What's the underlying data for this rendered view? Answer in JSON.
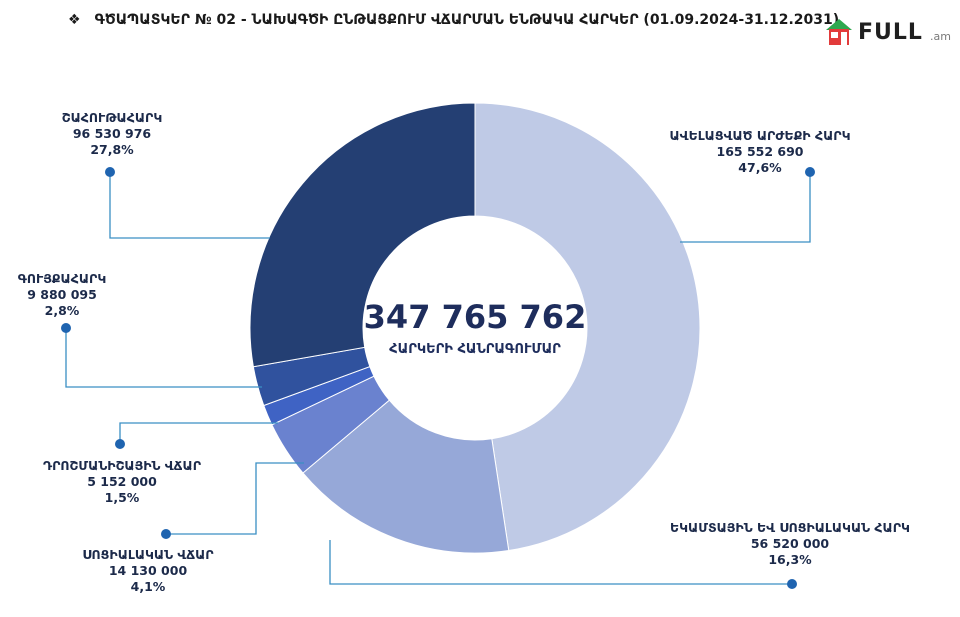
{
  "header": {
    "bullet": "❖",
    "title": "ԳԾԱՊԱՏԿԵՐ № 02 - ՆԱԽԱԳԾԻ ԸՆԹԱՑՔՈՒՄ ՎՃԱՐՄԱՆ ԵՆԹԱԿԱ ՀԱՐԿԵՐ (01.09.2024-31.12.2031)"
  },
  "logo": {
    "text": "FULL",
    "sub": ".am",
    "icon": "house-logo-icon"
  },
  "chart_data": {
    "type": "pie",
    "center_value": "347 765 762",
    "center_label": "ՀԱՐԿԵՐԻ ՀԱՆՐԱԳՈՒՄԱՐ",
    "slices": [
      {
        "name": "ԱՎԵԼԱՑՎԱԾ ԱՐԺԵՔԻ ՀԱՐԿ",
        "value": 165552690,
        "value_label": "165 552 690",
        "percent_label": "47,6%",
        "percent": 47.6,
        "color": "#bfcae6"
      },
      {
        "name": "ԵԿԱՄՏԱՅԻՆ ԵՎ ՍՈՑԻԱԼԱԿԱՆ ՀԱՐԿ",
        "value": 56520000,
        "value_label": "56 520 000",
        "percent_label": "16,3%",
        "percent": 16.3,
        "color": "#96a8d8"
      },
      {
        "name": "ՍՈՑԻԱԼԱԿԱՆ ՎՃԱՐ",
        "value": 14130000,
        "value_label": "14 130 000",
        "percent_label": "4,1%",
        "percent": 4.1,
        "color": "#6a82cf"
      },
      {
        "name": "ԴՐՈՇՄԱՆԻՇԱՅԻՆ ՎՃԱՐ",
        "value": 5152000,
        "value_label": "5 152 000",
        "percent_label": "1,5%",
        "percent": 1.5,
        "color": "#3f63c4"
      },
      {
        "name": "ԳՈՒՅՔԱՀԱՐԿ",
        "value": 9880095,
        "value_label": "9 880 095",
        "percent_label": "2,8%",
        "percent": 2.8,
        "color": "#30529e"
      },
      {
        "name": "ՇԱՀՈՒԹԱՀԱՐԿ",
        "value": 96530976,
        "value_label": "96 530 976",
        "percent_label": "27,8%",
        "percent": 27.8,
        "color": "#243f73"
      }
    ],
    "leader_color": "#3a8fc4",
    "dot_color": "#1f64b0"
  }
}
